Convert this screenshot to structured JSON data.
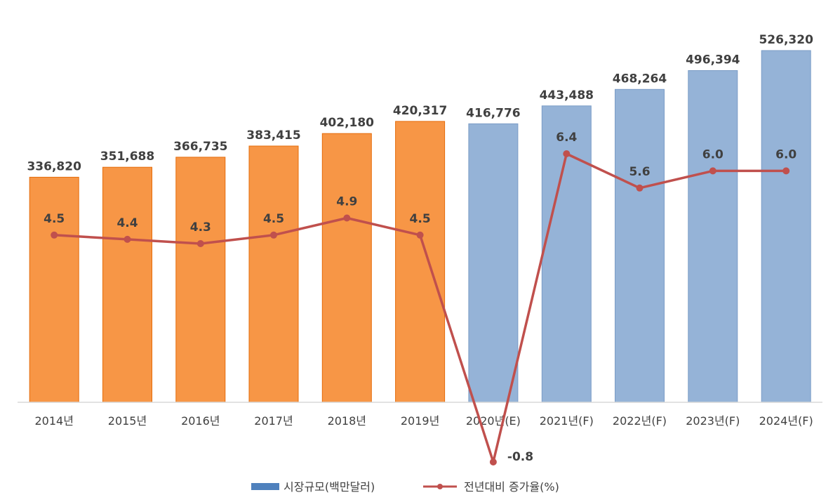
{
  "chart_data": {
    "type": "bar",
    "categories": [
      "2014년",
      "2015년",
      "2016년",
      "2017년",
      "2018년",
      "2019년",
      "2020년(E)",
      "2021년(F)",
      "2022년(F)",
      "2023년(F)",
      "2024년(F)"
    ],
    "series": [
      {
        "name": "시장규모(백만달러)",
        "type": "bar",
        "values": [
          336820,
          351688,
          366735,
          383415,
          402180,
          420317,
          416776,
          443488,
          468264,
          496394,
          526320
        ],
        "labels": [
          "336,820",
          "351,688",
          "366,735",
          "383,415",
          "402,180",
          "420,317",
          "416,776",
          "443,488",
          "468,264",
          "496,394",
          "526,320"
        ],
        "colors": [
          "#F79646",
          "#F79646",
          "#F79646",
          "#F79646",
          "#F79646",
          "#F79646",
          "#95B3D7",
          "#95B3D7",
          "#95B3D7",
          "#95B3D7",
          "#95B3D7"
        ]
      },
      {
        "name": "전년대비 증가율(%)",
        "type": "line",
        "values": [
          4.5,
          4.4,
          4.3,
          4.5,
          4.9,
          4.5,
          -0.8,
          6.4,
          5.6,
          6.0,
          6.0
        ],
        "labels": [
          "4.5",
          "4.4",
          "4.3",
          "4.5",
          "4.9",
          "4.5",
          "-0.8",
          "6.4",
          "5.6",
          "6.0",
          "6.0"
        ],
        "color": "#C0504D"
      }
    ],
    "bar_axis_range": [
      0,
      530000
    ],
    "line_axis_range": [
      -0.8,
      6.4
    ],
    "legend_position": "bottom",
    "legend_swatch_color": "#4F81BD",
    "grid": false
  }
}
